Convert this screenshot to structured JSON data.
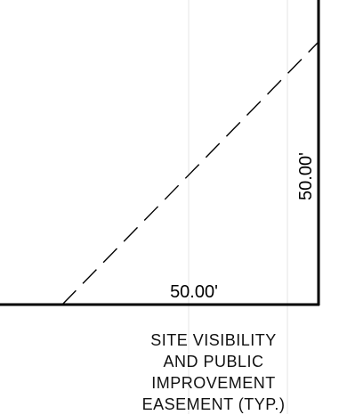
{
  "drawing": {
    "dimensions": {
      "horizontal": "50.00'",
      "vertical": "50.00'"
    },
    "note": {
      "lines": [
        "SITE VISIBILITY",
        "AND PUBLIC",
        "IMPROVEMENT",
        "EASEMENT (TYP.)"
      ]
    }
  }
}
